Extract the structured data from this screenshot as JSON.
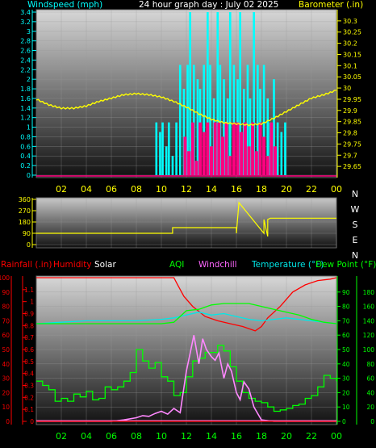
{
  "colors": {
    "windspeed": "#00ffff",
    "gust": "#ff0080",
    "barometer": "#ffff00",
    "direction": "#ffff00",
    "rain": "#ff0000",
    "humidity": "#ff0000",
    "solar": "#ffffff",
    "aqi": "#00ff00",
    "windchill": "#ff88ff",
    "temperature": "#00e8e8",
    "dewpoint": "#00ff00",
    "axis_yellow": "#ffff00",
    "axis_cyan": "#00ffff",
    "axis_red": "#ff0000",
    "axis_green": "#00ff00",
    "compass": "#ffffff"
  },
  "header": {
    "windspeed_label": "Windspeed (mph)",
    "title": "24 hour graph day : July 02 2025",
    "barometer_label": "Barometer (.in)"
  },
  "legend2": {
    "rainfall": "Rainfall (.in)",
    "humidity": "Humidity",
    "solar": "Solar",
    "aqi": "AQI",
    "windchill": "Windchill",
    "temperature": "Temperature (°F)",
    "dewpoint": "Dew Point (°F)"
  },
  "chart_data": [
    {
      "type": "bar",
      "title": "24 hour graph day : July 02 2025",
      "xticks": [
        "02",
        "04",
        "06",
        "08",
        "10",
        "12",
        "14",
        "16",
        "18",
        "20",
        "22",
        "00"
      ],
      "ylabel": "Windspeed (mph)",
      "ylim": [
        0,
        3.4
      ],
      "yticks": [
        "0",
        "0.2",
        "0.4",
        "0.6",
        "0.8",
        "1",
        "1.2",
        "1.4",
        "1.6",
        "1.8",
        "2",
        "2.2",
        "2.4",
        "2.6",
        "2.8",
        "3",
        "3.2",
        "3.4"
      ],
      "y2label": "Barometer (.in)",
      "y2lim": [
        29.6,
        30.35
      ],
      "y2ticks": [
        "29.65",
        "29.7",
        "29.75",
        "29.8",
        "29.85",
        "29.9",
        "29.95",
        "30",
        "30.05",
        "30.1",
        "30.15",
        "30.2",
        "30.25",
        "30.3"
      ],
      "series": [
        {
          "name": "Windspeed (mph)",
          "x": [
            9.6,
            9.9,
            10.1,
            10.4,
            10.6,
            10.9,
            11.2,
            11.5,
            11.8,
            12.1,
            12.3,
            12.6,
            12.9,
            13.1,
            13.4,
            13.7,
            13.9,
            14.2,
            14.5,
            14.7,
            15.0,
            15.3,
            15.5,
            15.8,
            16.1,
            16.3,
            16.6,
            16.9,
            17.1,
            17.4,
            17.7,
            17.9,
            18.2,
            18.5,
            18.7,
            19.0,
            19.3,
            19.6,
            19.9
          ],
          "y": [
            1.1,
            0.9,
            1.1,
            0.6,
            1.1,
            0.4,
            1.1,
            2.3,
            1.8,
            2.3,
            3.4,
            2.3,
            2.0,
            1.8,
            2.3,
            3.4,
            2.3,
            1.6,
            3.4,
            2.3,
            2.0,
            1.6,
            3.4,
            2.3,
            2.0,
            3.4,
            1.8,
            2.3,
            1.6,
            3.4,
            2.3,
            1.8,
            2.3,
            1.6,
            1.1,
            2.0,
            1.1,
            0.9,
            1.1
          ]
        },
        {
          "name": "Gust",
          "x": [
            11.9,
            12.2,
            12.5,
            12.8,
            13.1,
            13.4,
            13.7,
            14.0,
            14.3,
            14.6,
            14.9,
            15.2,
            15.5,
            15.8,
            16.1,
            16.4,
            16.7,
            17.0,
            17.3,
            17.6,
            17.9,
            18.2,
            18.5,
            18.8,
            19.1
          ],
          "y": [
            0.8,
            0.5,
            1.1,
            0.3,
            1.1,
            0.9,
            1.1,
            0.6,
            1.1,
            1.1,
            0.8,
            1.1,
            0.4,
            1.1,
            1.1,
            0.9,
            1.1,
            0.6,
            1.1,
            0.5,
            1.1,
            0.8,
            0.4,
            1.1,
            0.6
          ]
        },
        {
          "name": "Barometer (.in)",
          "axis": "right",
          "x": [
            0,
            1,
            2,
            3,
            4,
            5,
            6,
            7,
            8,
            9,
            10,
            11,
            12,
            13,
            14,
            15,
            16,
            17,
            18,
            19,
            20,
            21,
            22,
            23,
            24
          ],
          "y": [
            29.95,
            29.925,
            29.91,
            29.91,
            29.92,
            29.94,
            29.955,
            29.97,
            29.975,
            29.97,
            29.96,
            29.94,
            29.915,
            29.885,
            29.86,
            29.845,
            29.84,
            29.835,
            29.84,
            29.865,
            29.895,
            29.925,
            29.955,
            29.97,
            29.99
          ]
        }
      ]
    },
    {
      "type": "line",
      "xticks": [
        "02",
        "04",
        "06",
        "08",
        "10",
        "12",
        "14",
        "16",
        "18",
        "20",
        "22",
        "00"
      ],
      "ylabel": "",
      "ylim": [
        0,
        360
      ],
      "yticks": [
        "0",
        "90",
        "180",
        "270",
        "360"
      ],
      "y2label": "",
      "y2ticks": [
        "N",
        "W",
        "S",
        "E",
        "N"
      ],
      "series": [
        {
          "name": "Wind direction",
          "x": [
            0,
            10.9,
            10.9,
            16.0,
            16.0,
            16.2,
            16.2,
            18.2,
            18.2,
            18.5,
            18.5,
            18.7,
            18.7,
            24
          ],
          "y": [
            90,
            90,
            135,
            135,
            90,
            335,
            335,
            90,
            200,
            65,
            200,
            210,
            210,
            210
          ]
        }
      ]
    },
    {
      "type": "line",
      "xticks": [
        "02",
        "04",
        "06",
        "08",
        "10",
        "12",
        "14",
        "16",
        "18",
        "20",
        "22",
        "00"
      ],
      "ylabel": "Rainfall (.in)",
      "ylim": [
        0,
        1.2
      ],
      "yticks": [
        "0",
        "0.1",
        "0.2",
        "0.3",
        "0.4",
        "0.5",
        "0.6",
        "0.7",
        "0.8",
        "0.9",
        "1",
        "1.1"
      ],
      "ylabel2": "Humidity",
      "ylim2": [
        0,
        100
      ],
      "yticks2": [
        "0",
        "10",
        "20",
        "30",
        "40",
        "50",
        "60",
        "70",
        "80",
        "90",
        "100"
      ],
      "y2label": "Temperature (°F)",
      "y2lim": [
        0,
        100
      ],
      "y2ticks": [
        "0",
        "10",
        "20",
        "30",
        "40",
        "50",
        "60",
        "70",
        "80",
        "90"
      ],
      "y3label": "Solar",
      "y3lim": [
        0,
        200
      ],
      "y3ticks": [
        "0",
        "20",
        "40",
        "60",
        "80",
        "100",
        "120",
        "140",
        "160",
        "180"
      ],
      "series": [
        {
          "name": "Humidity",
          "axis": "humidity",
          "x": [
            0,
            11.0,
            11.3,
            11.8,
            12.5,
            13.5,
            14.5,
            15.5,
            16.5,
            17.5,
            18.0,
            18.5,
            19.5,
            20.5,
            21.5,
            22.5,
            23.5,
            24
          ],
          "y": [
            100,
            100,
            95,
            87,
            80,
            73,
            70,
            68,
            66,
            63,
            66,
            72,
            80,
            90,
            95,
            98,
            99,
            100
          ]
        },
        {
          "name": "Temperature (°F)",
          "axis": "temp",
          "x": [
            0,
            2,
            4,
            6,
            8,
            10,
            11,
            12,
            13,
            14,
            15,
            16,
            17,
            18,
            19,
            20,
            21,
            22,
            23,
            24
          ],
          "y": [
            68,
            69,
            70,
            70,
            70,
            71,
            72,
            74,
            76,
            74,
            75,
            73,
            71,
            70,
            71,
            72,
            71,
            70,
            69,
            68
          ]
        },
        {
          "name": "Dew Point (°F)",
          "axis": "temp",
          "x": [
            0,
            10,
            11,
            12,
            13,
            14,
            15,
            16,
            17,
            18,
            19,
            20,
            21,
            22,
            23,
            24
          ],
          "y": [
            68,
            68,
            69,
            77,
            78,
            81,
            82,
            82,
            82,
            80,
            78,
            76,
            74,
            71,
            69,
            68
          ]
        },
        {
          "name": "AQI",
          "axis": "temp",
          "x": [
            0,
            0.5,
            1,
            1.5,
            2,
            2.5,
            3,
            3.5,
            4,
            4.5,
            5,
            5.5,
            6,
            6.5,
            7,
            7.5,
            8,
            8.5,
            9,
            9.5,
            10,
            10.5,
            11,
            11.5,
            12,
            12.5,
            13,
            13.5,
            14,
            14.5,
            15,
            15.5,
            16,
            16.5,
            17,
            17.5,
            18,
            18.5,
            19,
            19.5,
            20,
            20.5,
            21,
            21.5,
            22,
            22.5,
            23,
            23.5,
            24
          ],
          "y": [
            28,
            25,
            22,
            14,
            16,
            14,
            19,
            17,
            21,
            15,
            16,
            24,
            22,
            24,
            28,
            34,
            50,
            42,
            37,
            41,
            31,
            28,
            18,
            20,
            31,
            42,
            44,
            48,
            48,
            53,
            49,
            38,
            28,
            20,
            16,
            14,
            13,
            10,
            7,
            8,
            9,
            11,
            12,
            16,
            18,
            24,
            32,
            30,
            28
          ]
        },
        {
          "name": "Solar",
          "axis": "solar",
          "x": [
            0,
            6,
            7,
            8,
            8.5,
            9,
            9.5,
            10,
            10.5,
            11,
            11.5,
            12,
            12.3,
            12.6,
            13,
            13.3,
            13.6,
            14,
            14.3,
            14.6,
            15,
            15.3,
            15.6,
            16,
            16.3,
            16.6,
            17,
            17.4,
            17.8,
            18,
            19,
            20,
            24
          ],
          "y": [
            0,
            0,
            2,
            5,
            8,
            7,
            11,
            14,
            10,
            18,
            12,
            70,
            95,
            120,
            80,
            115,
            100,
            90,
            85,
            95,
            60,
            80,
            70,
            40,
            30,
            55,
            45,
            20,
            8,
            2,
            0,
            0,
            0
          ]
        },
        {
          "name": "Windchill",
          "axis": "temp",
          "x": [
            0,
            24
          ],
          "y": [
            0.5,
            0.5
          ]
        },
        {
          "name": "Rainfall (.in)",
          "axis": "rain",
          "x": [
            0,
            24
          ],
          "y": [
            0,
            0
          ]
        }
      ]
    }
  ]
}
